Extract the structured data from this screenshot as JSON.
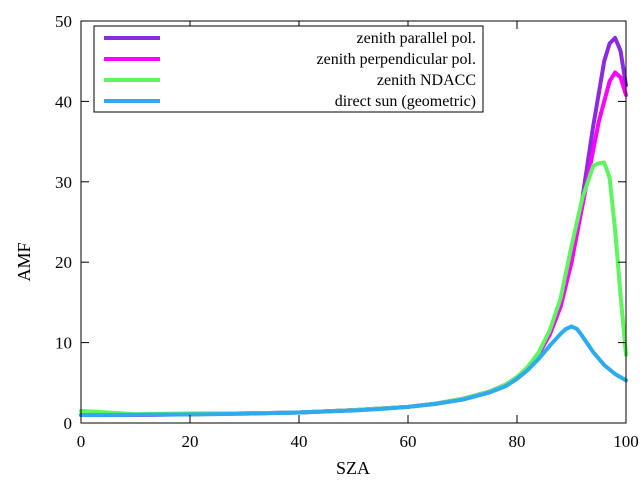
{
  "chart_data": {
    "type": "line",
    "title": "",
    "xlabel": "SZA",
    "ylabel": "AMF",
    "xlim": [
      0,
      100
    ],
    "ylim": [
      0,
      50
    ],
    "xticks": [
      0,
      20,
      40,
      60,
      80,
      100
    ],
    "yticks": [
      0,
      10,
      20,
      30,
      40,
      50
    ],
    "grid": false,
    "legend_position": "top-right",
    "series": [
      {
        "name": "zenith parallel pol.",
        "color": "#8a2be2",
        "x": [
          0,
          5,
          10,
          20,
          30,
          40,
          50,
          55,
          60,
          65,
          70,
          75,
          78,
          80,
          82,
          84,
          86,
          88,
          90,
          92,
          94,
          95,
          96,
          97,
          98,
          99,
          100
        ],
        "y": [
          1.0,
          1.0,
          1.0,
          1.1,
          1.2,
          1.3,
          1.6,
          1.8,
          2.0,
          2.4,
          3.0,
          3.9,
          4.8,
          5.7,
          6.9,
          8.6,
          11.0,
          14.5,
          20.0,
          28.0,
          37.0,
          41.0,
          45.0,
          47.2,
          47.9,
          46.3,
          42.0
        ]
      },
      {
        "name": "zenith perpendicular pol.",
        "color": "#ff00ff",
        "x": [
          0,
          5,
          10,
          20,
          30,
          40,
          50,
          55,
          60,
          65,
          70,
          75,
          78,
          80,
          82,
          84,
          86,
          88,
          90,
          92,
          94,
          95,
          96,
          97,
          98,
          99,
          100
        ],
        "y": [
          1.0,
          1.0,
          1.0,
          1.1,
          1.2,
          1.3,
          1.6,
          1.8,
          2.0,
          2.4,
          3.0,
          3.9,
          4.8,
          5.7,
          6.9,
          8.6,
          11.0,
          14.5,
          20.0,
          27.0,
          34.0,
          37.5,
          40.0,
          42.5,
          43.6,
          43.0,
          40.8
        ]
      },
      {
        "name": "zenith NDACC",
        "color": "#5ef55e",
        "x": [
          0,
          5,
          10,
          20,
          30,
          40,
          50,
          55,
          60,
          65,
          70,
          75,
          78,
          80,
          82,
          84,
          86,
          88,
          90,
          92,
          94,
          95,
          96,
          97,
          98,
          99,
          100
        ],
        "y": [
          1.5,
          1.3,
          1.1,
          1.2,
          1.2,
          1.3,
          1.6,
          1.8,
          2.0,
          2.4,
          3.0,
          3.9,
          4.8,
          5.7,
          7.0,
          8.8,
          11.5,
          15.5,
          22.0,
          28.0,
          32.0,
          32.3,
          32.4,
          30.5,
          24.0,
          16.0,
          8.5
        ]
      },
      {
        "name": "direct sun (geometric)",
        "color": "#2eaaee",
        "x": [
          0,
          10,
          20,
          30,
          40,
          50,
          55,
          60,
          65,
          70,
          75,
          78,
          80,
          82,
          84,
          86,
          88,
          89,
          90,
          91,
          92,
          94,
          96,
          98,
          100
        ],
        "y": [
          1.0,
          1.02,
          1.06,
          1.15,
          1.3,
          1.55,
          1.74,
          2.0,
          2.36,
          2.9,
          3.8,
          4.6,
          5.5,
          6.6,
          8.0,
          9.6,
          11.1,
          11.7,
          12.0,
          11.7,
          10.8,
          8.8,
          7.2,
          6.1,
          5.3
        ]
      }
    ]
  }
}
